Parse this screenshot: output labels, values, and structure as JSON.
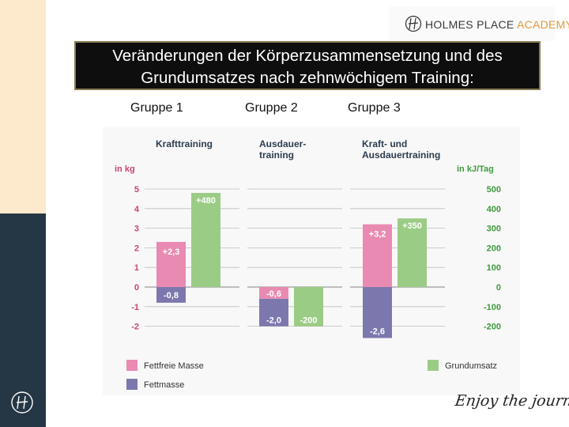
{
  "brand": {
    "name_part1": "HOLMES PLACE",
    "name_part2": "ACADEMY"
  },
  "title": {
    "line1": "Veränderungen der Körperzusammensetzung und des",
    "line2": "Grundumsatzes nach zehnwöchigem Training:"
  },
  "groups": [
    "Gruppe 1",
    "Gruppe 2",
    "Gruppe 3"
  ],
  "tagline": "Enjoy the journey",
  "colors": {
    "fettfreie": "#e98ab3",
    "fett": "#7c78ae",
    "grundumsatz": "#9bcc85",
    "axis_left": "#cc4477",
    "axis_right": "#3f9a3f",
    "header": "#2d3d4f"
  },
  "chart_data": {
    "type": "bar",
    "left_axis": {
      "label": "in kg",
      "ticks": [
        "5",
        "4",
        "3",
        "2",
        "1",
        "0",
        "-1",
        "-2"
      ],
      "range": [
        -2,
        5
      ]
    },
    "right_axis": {
      "label": "in kJ/Tag",
      "ticks": [
        "500",
        "400",
        "300",
        "200",
        "100",
        "0",
        "-100",
        "-200"
      ],
      "range": [
        -200,
        500
      ]
    },
    "panels": [
      {
        "title_lines": [
          "Krafttraining"
        ],
        "fettfreie_masse": 2.3,
        "fettfreie_label": "+2,3",
        "fettmasse": -0.8,
        "fettmasse_label": "-0,8",
        "grundumsatz": 480,
        "grundumsatz_label": "+480"
      },
      {
        "title_lines": [
          "Ausdauer-",
          "training"
        ],
        "fettfreie_masse": -0.6,
        "fettfreie_label": "-0,6",
        "fettmasse": -2.0,
        "fettmasse_label": "-2,0",
        "grundumsatz": -200,
        "grundumsatz_label": "-200"
      },
      {
        "title_lines": [
          "Kraft- und",
          "Ausdauertraining"
        ],
        "fettfreie_masse": 3.2,
        "fettfreie_label": "+3,2",
        "fettmasse": -2.6,
        "fettmasse_label": "-2,6",
        "grundumsatz": 350,
        "grundumsatz_label": "+350"
      }
    ],
    "legend": {
      "fettfreie": "Fettfreie Masse",
      "fett": "Fettmasse",
      "grundumsatz": "Grundumsatz"
    },
    "grid": true
  }
}
